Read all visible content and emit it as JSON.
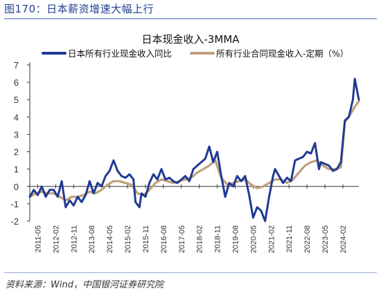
{
  "figure_title": "图170：日本薪资增速大幅上行",
  "source": "资料来源：Wind，中国银河证券研究院",
  "chart_data": {
    "type": "line",
    "title": "日本现金收入-3MMA",
    "xlabel": "",
    "ylabel": "",
    "ylim": [
      -2,
      7
    ],
    "yticks": [
      "-2",
      "-1",
      "0",
      "1",
      "2",
      "3",
      "4",
      "5",
      "6",
      "7"
    ],
    "grid": false,
    "legend_position": "top",
    "x_tick_labels": [
      "2011-05",
      "2012-02",
      "2012-11",
      "2013-08",
      "2014-05",
      "2015-02",
      "2015-11",
      "2016-08",
      "2017-05",
      "2018-02",
      "2018-11",
      "2019-08",
      "2020-05",
      "2021-02",
      "2021-11",
      "2022-08",
      "2023-05",
      "2024-02"
    ],
    "x_start": "2011-01",
    "x_end": "2024-10",
    "series": [
      {
        "name": "日本所有行业现金收入同比",
        "color": "#1f3a93",
        "points": [
          [
            "2011-01",
            -0.6
          ],
          [
            "2011-03",
            -0.2
          ],
          [
            "2011-05",
            -0.5
          ],
          [
            "2011-07",
            0.0
          ],
          [
            "2011-09",
            -0.6
          ],
          [
            "2011-11",
            -0.2
          ],
          [
            "2012-01",
            -0.2
          ],
          [
            "2012-03",
            -0.6
          ],
          [
            "2012-05",
            0.3
          ],
          [
            "2012-07",
            -1.2
          ],
          [
            "2012-09",
            -0.8
          ],
          [
            "2012-11",
            -1.1
          ],
          [
            "2013-01",
            -0.6
          ],
          [
            "2013-03",
            -0.9
          ],
          [
            "2013-05",
            -0.5
          ],
          [
            "2013-07",
            0.3
          ],
          [
            "2013-09",
            -0.4
          ],
          [
            "2013-11",
            0.2
          ],
          [
            "2014-01",
            0.0
          ],
          [
            "2014-03",
            0.6
          ],
          [
            "2014-05",
            0.9
          ],
          [
            "2014-07",
            1.5
          ],
          [
            "2014-09",
            0.9
          ],
          [
            "2014-11",
            0.6
          ],
          [
            "2015-01",
            0.5
          ],
          [
            "2015-03",
            0.7
          ],
          [
            "2015-05",
            0.4
          ],
          [
            "2015-06",
            -0.9
          ],
          [
            "2015-08",
            -1.2
          ],
          [
            "2015-09",
            -0.4
          ],
          [
            "2015-11",
            -0.6
          ],
          [
            "2016-01",
            0.2
          ],
          [
            "2016-03",
            0.7
          ],
          [
            "2016-05",
            0.4
          ],
          [
            "2016-07",
            1.0
          ],
          [
            "2016-09",
            0.4
          ],
          [
            "2016-11",
            0.5
          ],
          [
            "2017-01",
            0.3
          ],
          [
            "2017-03",
            0.2
          ],
          [
            "2017-05",
            0.4
          ],
          [
            "2017-07",
            0.6
          ],
          [
            "2017-09",
            0.3
          ],
          [
            "2017-11",
            1.0
          ],
          [
            "2018-01",
            1.2
          ],
          [
            "2018-03",
            1.4
          ],
          [
            "2018-05",
            1.6
          ],
          [
            "2018-07",
            2.3
          ],
          [
            "2018-09",
            1.4
          ],
          [
            "2018-11",
            2.0
          ],
          [
            "2019-01",
            0.6
          ],
          [
            "2019-03",
            -0.6
          ],
          [
            "2019-05",
            0.2
          ],
          [
            "2019-07",
            0.0
          ],
          [
            "2019-09",
            0.6
          ],
          [
            "2019-11",
            0.3
          ],
          [
            "2020-01",
            0.6
          ],
          [
            "2020-03",
            -0.5
          ],
          [
            "2020-05",
            -1.8
          ],
          [
            "2020-07",
            -1.2
          ],
          [
            "2020-09",
            -1.4
          ],
          [
            "2020-11",
            -2.0
          ],
          [
            "2021-01",
            -0.6
          ],
          [
            "2021-03",
            0.6
          ],
          [
            "2021-04",
            1.0
          ],
          [
            "2021-06",
            0.6
          ],
          [
            "2021-08",
            0.2
          ],
          [
            "2021-10",
            0.5
          ],
          [
            "2021-12",
            0.3
          ],
          [
            "2022-02",
            1.5
          ],
          [
            "2022-04",
            1.6
          ],
          [
            "2022-06",
            1.7
          ],
          [
            "2022-08",
            2.0
          ],
          [
            "2022-10",
            1.9
          ],
          [
            "2022-12",
            2.5
          ],
          [
            "2023-02",
            1.0
          ],
          [
            "2023-03",
            1.4
          ],
          [
            "2023-05",
            1.3
          ],
          [
            "2023-07",
            1.2
          ],
          [
            "2023-09",
            0.9
          ],
          [
            "2023-11",
            1.0
          ],
          [
            "2024-01",
            1.4
          ],
          [
            "2024-03",
            3.8
          ],
          [
            "2024-05",
            4.0
          ],
          [
            "2024-07",
            5.0
          ],
          [
            "2024-08",
            6.2
          ],
          [
            "2024-09",
            5.6
          ],
          [
            "2024-10",
            5.0
          ]
        ]
      },
      {
        "name": "所有行业合同现金收入-定期（%）",
        "color": "#bfa07a",
        "points": [
          [
            "2011-01",
            -0.6
          ],
          [
            "2011-04",
            -0.4
          ],
          [
            "2011-07",
            -0.3
          ],
          [
            "2011-10",
            -0.4
          ],
          [
            "2012-01",
            -0.4
          ],
          [
            "2012-04",
            -0.6
          ],
          [
            "2012-07",
            -0.8
          ],
          [
            "2012-10",
            -0.6
          ],
          [
            "2013-01",
            -0.6
          ],
          [
            "2013-04",
            -0.5
          ],
          [
            "2013-07",
            -0.3
          ],
          [
            "2013-10",
            -0.4
          ],
          [
            "2014-01",
            -0.2
          ],
          [
            "2014-04",
            0.1
          ],
          [
            "2014-07",
            0.3
          ],
          [
            "2014-10",
            0.3
          ],
          [
            "2015-01",
            0.2
          ],
          [
            "2015-04",
            0.1
          ],
          [
            "2015-07",
            -0.4
          ],
          [
            "2015-10",
            -0.5
          ],
          [
            "2016-01",
            -0.2
          ],
          [
            "2016-04",
            0.2
          ],
          [
            "2016-07",
            0.4
          ],
          [
            "2016-10",
            0.3
          ],
          [
            "2017-01",
            0.2
          ],
          [
            "2017-04",
            0.3
          ],
          [
            "2017-07",
            0.4
          ],
          [
            "2017-10",
            0.5
          ],
          [
            "2018-01",
            0.8
          ],
          [
            "2018-04",
            1.0
          ],
          [
            "2018-07",
            1.2
          ],
          [
            "2018-10",
            1.5
          ],
          [
            "2019-01",
            0.5
          ],
          [
            "2019-04",
            0.1
          ],
          [
            "2019-07",
            0.2
          ],
          [
            "2019-10",
            0.3
          ],
          [
            "2020-01",
            0.4
          ],
          [
            "2020-04",
            0.1
          ],
          [
            "2020-07",
            -0.1
          ],
          [
            "2020-10",
            0.0
          ],
          [
            "2021-01",
            0.2
          ],
          [
            "2021-04",
            0.4
          ],
          [
            "2021-07",
            0.4
          ],
          [
            "2021-10",
            0.2
          ],
          [
            "2022-01",
            0.4
          ],
          [
            "2022-04",
            0.8
          ],
          [
            "2022-07",
            1.2
          ],
          [
            "2022-10",
            1.4
          ],
          [
            "2023-01",
            1.5
          ],
          [
            "2023-04",
            1.2
          ],
          [
            "2023-07",
            1.0
          ],
          [
            "2023-10",
            1.0
          ],
          [
            "2024-01",
            1.1
          ],
          [
            "2024-03",
            3.7
          ],
          [
            "2024-06",
            4.2
          ],
          [
            "2024-08",
            4.6
          ],
          [
            "2024-10",
            4.9
          ]
        ]
      }
    ]
  }
}
